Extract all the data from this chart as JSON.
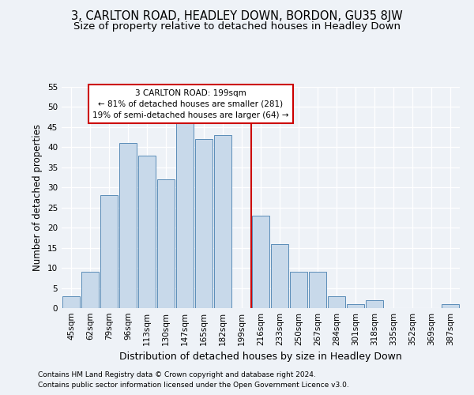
{
  "title": "3, CARLTON ROAD, HEADLEY DOWN, BORDON, GU35 8JW",
  "subtitle": "Size of property relative to detached houses in Headley Down",
  "xlabel": "Distribution of detached houses by size in Headley Down",
  "ylabel": "Number of detached properties",
  "footer1": "Contains HM Land Registry data © Crown copyright and database right 2024.",
  "footer2": "Contains public sector information licensed under the Open Government Licence v3.0.",
  "bar_labels": [
    "45sqm",
    "62sqm",
    "79sqm",
    "96sqm",
    "113sqm",
    "130sqm",
    "147sqm",
    "165sqm",
    "182sqm",
    "199sqm",
    "216sqm",
    "233sqm",
    "250sqm",
    "267sqm",
    "284sqm",
    "301sqm",
    "318sqm",
    "335sqm",
    "352sqm",
    "369sqm",
    "387sqm"
  ],
  "bar_values": [
    3,
    9,
    28,
    41,
    38,
    32,
    46,
    42,
    43,
    0,
    23,
    16,
    9,
    9,
    3,
    1,
    2,
    0,
    0,
    0,
    1
  ],
  "bar_color": "#c8d9ea",
  "bar_edge_color": "#5b8db8",
  "vline_index": 9,
  "vline_color": "#cc0000",
  "annotation_text": "3 CARLTON ROAD: 199sqm\n← 81% of detached houses are smaller (281)\n19% of semi-detached houses are larger (64) →",
  "annotation_box_facecolor": "#ffffff",
  "annotation_box_edgecolor": "#cc0000",
  "ylim": [
    0,
    55
  ],
  "yticks": [
    0,
    5,
    10,
    15,
    20,
    25,
    30,
    35,
    40,
    45,
    50,
    55
  ],
  "background_color": "#eef2f7",
  "grid_color": "#ffffff",
  "title_fontsize": 10.5,
  "subtitle_fontsize": 9.5,
  "xlabel_fontsize": 9,
  "ylabel_fontsize": 8.5,
  "tick_fontsize": 7.5,
  "footer_fontsize": 6.5
}
